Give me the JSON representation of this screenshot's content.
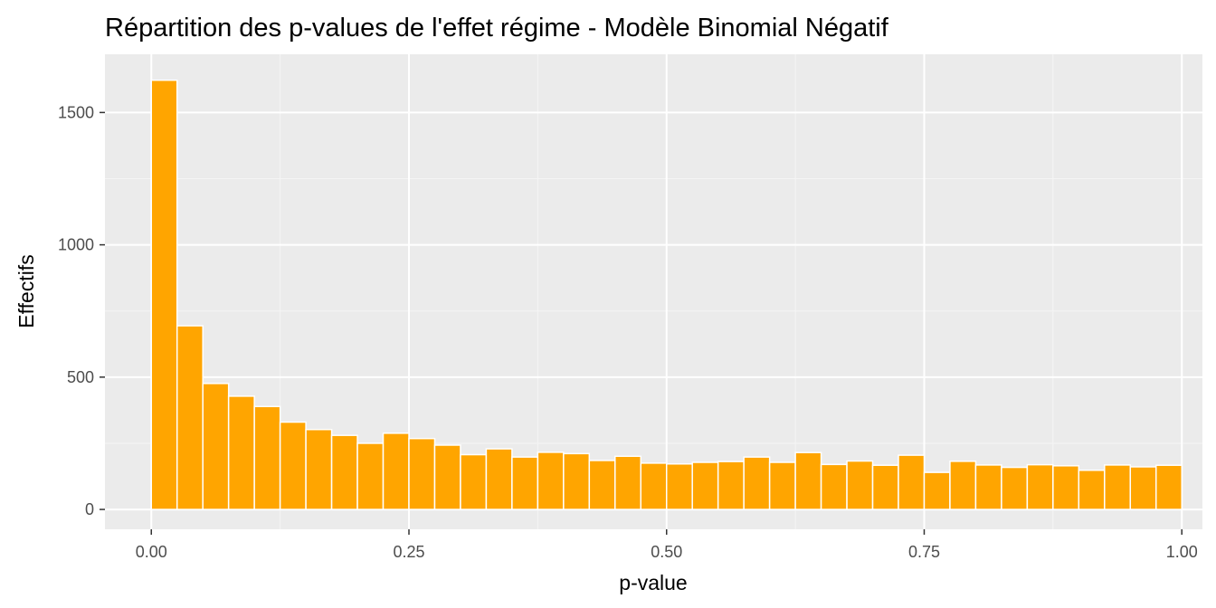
{
  "chart_data": {
    "type": "bar",
    "title": "Répartition des p-values de l'effet régime - Modèle Binomial Négatif",
    "xlabel": "p-value",
    "ylabel": "Effectifs",
    "xlim": [
      -0.045,
      1.02
    ],
    "ylim": [
      -75,
      1720
    ],
    "x_ticks": [
      0.0,
      0.25,
      0.5,
      0.75,
      1.0
    ],
    "x_tick_labels": [
      "0.00",
      "0.25",
      "0.50",
      "0.75",
      "1.00"
    ],
    "y_ticks": [
      0,
      500,
      1000,
      1500
    ],
    "y_tick_labels": [
      "0",
      "500",
      "1000",
      "1500"
    ],
    "grid": true,
    "bin_width": 0.025,
    "bin_centers": [
      0.0125,
      0.0375,
      0.0625,
      0.0875,
      0.1125,
      0.1375,
      0.1625,
      0.1875,
      0.2125,
      0.2375,
      0.2625,
      0.2875,
      0.3125,
      0.3375,
      0.3625,
      0.3875,
      0.4125,
      0.4375,
      0.4625,
      0.4875,
      0.5125,
      0.5375,
      0.5625,
      0.5875,
      0.6125,
      0.6375,
      0.6625,
      0.6875,
      0.7125,
      0.7375,
      0.7625,
      0.7875,
      0.8125,
      0.8375,
      0.8625,
      0.8875,
      0.9125,
      0.9375,
      0.9625,
      0.9875
    ],
    "values": [
      1622,
      694,
      476,
      428,
      389,
      330,
      302,
      280,
      250,
      288,
      268,
      243,
      207,
      229,
      198,
      216,
      211,
      185,
      201,
      175,
      172,
      178,
      181,
      198,
      178,
      215,
      170,
      183,
      167,
      205,
      140,
      182,
      168,
      159,
      169,
      165,
      148,
      168,
      161,
      167
    ],
    "colors": {
      "bar_fill": "#FFA500",
      "bar_outline": "#FFFFFF",
      "panel_background": "#EBEBEB",
      "grid_major": "#FFFFFF",
      "grid_minor": "#F5F5F5",
      "tick_label": "#4D4D4D",
      "text": "#000000"
    }
  }
}
